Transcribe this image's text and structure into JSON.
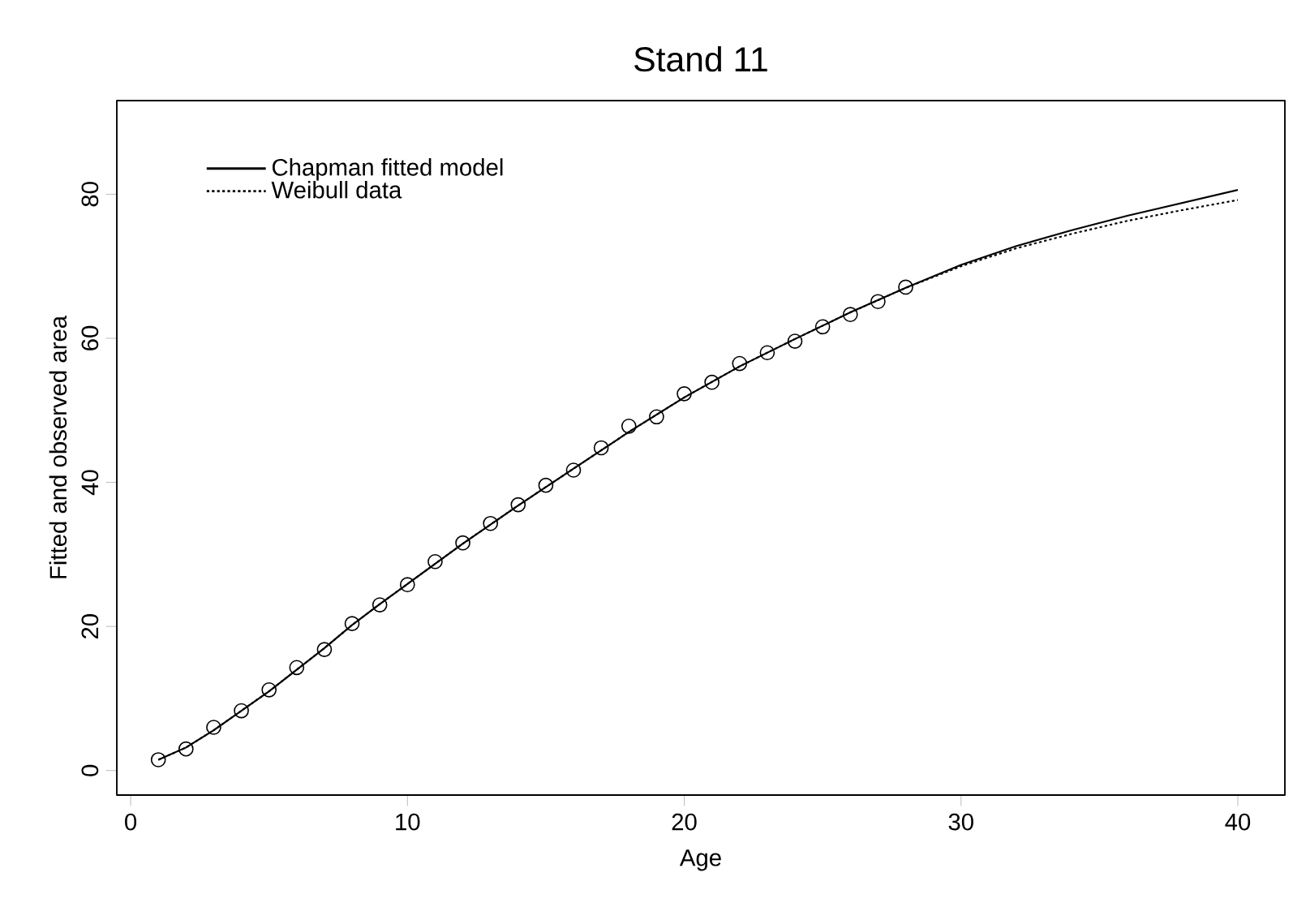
{
  "chart_data": {
    "type": "line",
    "title": "Stand 11",
    "xlabel": "Age",
    "ylabel": "Fitted and observed area",
    "xlim": [
      -0.5,
      41.7
    ],
    "ylim": [
      -3.4,
      93
    ],
    "xticks": [
      0,
      10,
      20,
      30,
      40
    ],
    "yticks": [
      0,
      20,
      40,
      60,
      80
    ],
    "legend": "top left",
    "grid": false,
    "series": [
      {
        "name": "Chapman fitted model",
        "line_style": "solid",
        "color": "#000000",
        "x": [
          1,
          2,
          3,
          4,
          5,
          6,
          7,
          8,
          9,
          10,
          12,
          14,
          16,
          18,
          20,
          22,
          24,
          26,
          28,
          30,
          32,
          34,
          36,
          38,
          40
        ],
        "values": [
          1.5,
          3.2,
          5.6,
          8.3,
          11,
          14,
          17,
          20.2,
          23.1,
          25.9,
          31.5,
          36.8,
          41.9,
          47,
          51.8,
          56.1,
          59.9,
          63.6,
          67,
          70.2,
          72.8,
          75,
          77,
          78.8,
          80.6
        ]
      },
      {
        "name": "Weibull data",
        "line_style": "dotted",
        "color": "#000000",
        "x": [
          1,
          2,
          3,
          4,
          5,
          6,
          7,
          8,
          9,
          10,
          12,
          14,
          16,
          18,
          20,
          22,
          24,
          26,
          28,
          30,
          32,
          34,
          36,
          38,
          40
        ],
        "values": [
          1.5,
          3.2,
          5.6,
          8.3,
          11,
          14,
          17,
          20.2,
          23.1,
          25.9,
          31.5,
          36.8,
          41.9,
          47,
          51.8,
          56.1,
          59.9,
          63.6,
          67,
          70,
          72.5,
          74.5,
          76.3,
          77.8,
          79.2
        ]
      },
      {
        "type": "scatter",
        "marker": "circle",
        "color": "#000000",
        "x": [
          1,
          2,
          3,
          4,
          5,
          6,
          7,
          8,
          9,
          10,
          11,
          12,
          13,
          14,
          15,
          16,
          17,
          18,
          19,
          20,
          21,
          22,
          23,
          24,
          25,
          26,
          27,
          28
        ],
        "values": [
          1.5,
          3,
          6,
          8.3,
          11.2,
          14.3,
          16.8,
          20.4,
          23,
          25.8,
          29,
          31.6,
          34.3,
          36.9,
          39.6,
          41.7,
          44.8,
          47.8,
          49.1,
          52.3,
          53.9,
          56.5,
          58,
          59.6,
          61.6,
          63.3,
          65.1,
          67.1
        ]
      }
    ]
  }
}
